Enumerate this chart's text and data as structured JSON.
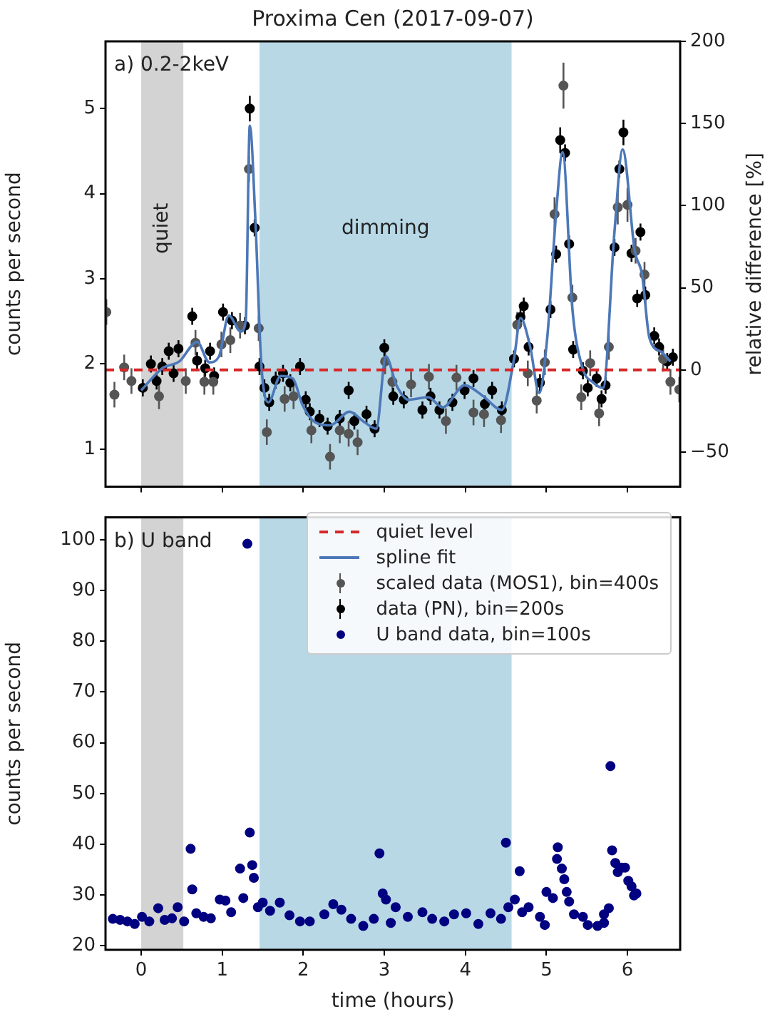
{
  "chart_data": [
    {
      "type": "scatter",
      "title": "Proxima Cen (2017-09-07)",
      "ylabel": "counts per second",
      "y2label": "relative difference [%]",
      "annotations": [
        "a) 0.2-2keV"
      ],
      "xlim": [
        -0.44,
        6.65
      ],
      "xticks": [
        0,
        1,
        2,
        3,
        4,
        5,
        6
      ],
      "ylim": [
        0.56,
        5.79
      ],
      "yticks": [
        1,
        2,
        3,
        4,
        5
      ],
      "y2lim": [
        -71,
        200
      ],
      "y2ticks": [
        {
          "value": -50,
          "label": "−50"
        },
        0,
        50,
        100,
        150,
        200
      ],
      "tick_labels": "y",
      "legend": "bottom right",
      "ref_lines": [
        {
          "axis": "y",
          "value": 1.93,
          "label": "quiet level",
          "color": "#d62728",
          "line_style": "dashed"
        }
      ],
      "bands": [
        {
          "axis": "x",
          "from": 0,
          "to": 0.52,
          "label": "quiet",
          "color": "#d3d3d3"
        },
        {
          "axis": "x",
          "from": 1.46,
          "to": 4.57,
          "label": "dimming",
          "color": "#b8d8e6"
        }
      ],
      "series": [
        {
          "name": "spline fit",
          "type": "line",
          "color": "#4c78b8",
          "x": [
            0,
            0.26,
            0.47,
            0.69,
            0.84,
            0.96,
            1.08,
            1.23,
            1.29,
            1.34,
            1.41,
            1.48,
            1.57,
            1.72,
            1.87,
            1.99,
            2.14,
            2.33,
            2.57,
            2.75,
            2.9,
            3.02,
            3.15,
            3.3,
            3.54,
            3.72,
            3.99,
            4.21,
            4.45,
            4.6,
            4.68,
            4.8,
            4.91,
            5.01,
            5.12,
            5.2,
            5.32,
            5.44,
            5.58,
            5.7,
            5.84,
            5.94,
            6.09,
            6.18,
            6.27,
            6.42,
            6.53
          ],
          "values": [
            1.69,
            1.95,
            2.03,
            2.26,
            2.02,
            2.09,
            2.57,
            2.38,
            2.51,
            4.8,
            3.67,
            2.03,
            1.55,
            1.86,
            1.83,
            1.52,
            1.32,
            1.28,
            1.44,
            1.32,
            1.24,
            2.09,
            1.75,
            1.58,
            1.61,
            1.49,
            1.75,
            1.63,
            1.46,
            2.06,
            2.54,
            2.2,
            1.66,
            2.31,
            3.78,
            4.49,
            2.65,
            1.97,
            1.78,
            1.72,
            3.56,
            4.52,
            3.33,
            3.05,
            2.31,
            2.14,
            2.03
          ]
        },
        {
          "name": "scaled data (MOS1), bin=400s",
          "type": "scatter",
          "marker": "circle",
          "color": "#555555",
          "x": [
            -0.43,
            -0.33,
            -0.21,
            -0.12,
            0.22,
            0.55,
            0.67,
            0.78,
            0.89,
            0.99,
            1.1,
            1.22,
            1.33,
            1.45,
            1.55,
            1.77,
            1.88,
            2.1,
            2.33,
            2.45,
            2.56,
            2.67,
            3.01,
            3.1,
            3.33,
            3.55,
            3.76,
            3.89,
            4.1,
            4.23,
            4.44,
            4.64,
            4.77,
            4.88,
            4.98,
            5.1,
            5.21,
            5.32,
            5.43,
            5.54,
            5.65,
            5.77,
            5.88,
            6.0,
            6.1,
            6.21,
            6.44,
            6.53,
            6.64
          ],
          "values": [
            2.61,
            1.64,
            1.96,
            1.8,
            1.62,
            1.8,
            2.25,
            1.79,
            1.79,
            2.23,
            2.28,
            2.45,
            4.29,
            2.42,
            1.2,
            1.59,
            1.62,
            1.22,
            0.91,
            1.22,
            1.18,
            1.08,
            2.03,
            1.79,
            1.76,
            1.85,
            1.33,
            1.84,
            1.43,
            1.41,
            1.34,
            2.46,
            1.89,
            1.57,
            2.02,
            3.76,
            5.27,
            2.78,
            1.61,
            2.01,
            1.42,
            2.2,
            3.84,
            3.87,
            3.33,
            3.05,
            2.06,
            1.79,
            1.7
          ],
          "errors": [
            0.15,
            0.15,
            0.15,
            0.15,
            0.15,
            0.15,
            0.15,
            0.15,
            0.15,
            0.15,
            0.15,
            0.15,
            0.15,
            0.15,
            0.15,
            0.15,
            0.15,
            0.15,
            0.15,
            0.15,
            0.15,
            0.15,
            0.15,
            0.15,
            0.15,
            0.15,
            0.15,
            0.15,
            0.15,
            0.15,
            0.15,
            0.15,
            0.15,
            0.15,
            0.15,
            0.2,
            0.27,
            0.15,
            0.15,
            0.15,
            0.15,
            0.15,
            0.2,
            0.2,
            0.15,
            0.15,
            0.15,
            0.15,
            0.15
          ]
        },
        {
          "name": "data (PN), bin=200s",
          "type": "scatter",
          "marker": "circle",
          "color": "#000000",
          "x": [
            0.02,
            0.12,
            0.19,
            0.26,
            0.34,
            0.4,
            0.46,
            0.63,
            0.69,
            0.79,
            0.85,
            0.9,
            1.01,
            1.12,
            1.28,
            1.34,
            1.4,
            1.46,
            1.52,
            1.58,
            1.66,
            1.75,
            1.84,
            1.96,
            2.03,
            2.08,
            2.2,
            2.3,
            2.45,
            2.56,
            2.63,
            2.78,
            2.88,
            3.0,
            3.11,
            3.24,
            3.47,
            3.57,
            3.68,
            3.84,
            3.99,
            4.1,
            4.24,
            4.33,
            4.45,
            4.6,
            4.68,
            4.72,
            4.78,
            4.92,
            5.05,
            5.12,
            5.17,
            5.23,
            5.28,
            5.33,
            5.45,
            5.51,
            5.62,
            5.68,
            5.73,
            5.84,
            5.9,
            5.95,
            6.05,
            6.12,
            6.16,
            6.22,
            6.33,
            6.39,
            6.49,
            6.56
          ],
          "values": [
            1.72,
            2.0,
            1.8,
            1.97,
            2.15,
            1.89,
            2.18,
            2.56,
            2.04,
            1.95,
            2.15,
            1.86,
            2.61,
            2.51,
            2.45,
            5.0,
            3.6,
            1.97,
            1.72,
            1.55,
            1.81,
            1.89,
            1.78,
            1.97,
            1.58,
            1.44,
            1.36,
            1.27,
            1.36,
            1.69,
            1.33,
            1.41,
            1.24,
            2.19,
            1.62,
            1.58,
            1.46,
            1.62,
            1.46,
            1.55,
            1.69,
            1.83,
            1.53,
            1.69,
            1.46,
            2.06,
            2.55,
            2.68,
            2.2,
            1.78,
            2.64,
            3.29,
            4.63,
            4.48,
            3.41,
            2.17,
            1.92,
            1.72,
            1.83,
            1.59,
            1.75,
            3.37,
            4.29,
            4.72,
            3.3,
            2.77,
            3.55,
            2.81,
            2.33,
            2.2,
            2.03,
            2.08
          ],
          "errors": [
            0.1,
            0.1,
            0.1,
            0.1,
            0.1,
            0.1,
            0.1,
            0.1,
            0.1,
            0.1,
            0.1,
            0.1,
            0.1,
            0.1,
            0.1,
            0.15,
            0.1,
            0.1,
            0.1,
            0.1,
            0.1,
            0.1,
            0.1,
            0.1,
            0.1,
            0.1,
            0.1,
            0.1,
            0.1,
            0.1,
            0.1,
            0.1,
            0.1,
            0.1,
            0.1,
            0.1,
            0.1,
            0.1,
            0.1,
            0.1,
            0.1,
            0.1,
            0.1,
            0.1,
            0.1,
            0.1,
            0.1,
            0.1,
            0.1,
            0.1,
            0.1,
            0.1,
            0.15,
            0.1,
            0.1,
            0.1,
            0.1,
            0.1,
            0.1,
            0.1,
            0.1,
            0.1,
            0.1,
            0.15,
            0.1,
            0.1,
            0.1,
            0.1,
            0.1,
            0.1,
            0.1,
            0.1
          ]
        }
      ]
    },
    {
      "type": "scatter",
      "xlabel": "time (hours)",
      "ylabel": "counts per second",
      "annotations": [
        "b) U band"
      ],
      "xlim": [
        -0.44,
        6.65
      ],
      "xticks": [
        0,
        1,
        2,
        3,
        4,
        5,
        6
      ],
      "ylim": [
        19.2,
        104.4
      ],
      "yticks": [
        20,
        30,
        40,
        50,
        60,
        70,
        80,
        90,
        100
      ],
      "legend": "top right",
      "bands": [
        {
          "axis": "x",
          "from": 0,
          "to": 0.52,
          "color": "#d3d3d3"
        },
        {
          "axis": "x",
          "from": 1.46,
          "to": 4.57,
          "color": "#b8d8e6"
        }
      ],
      "series": [
        {
          "name": "U band data, bin=100s",
          "type": "scatter",
          "marker": "circle",
          "color": "#000080",
          "x": [
            -0.35,
            -0.26,
            -0.17,
            -0.08,
            0.01,
            0.1,
            0.21,
            0.29,
            0.38,
            0.45,
            0.53,
            0.61,
            0.63,
            0.68,
            0.77,
            0.86,
            0.97,
            1.04,
            1.11,
            1.22,
            1.26,
            1.31,
            1.34,
            1.37,
            1.39,
            1.44,
            1.5,
            1.59,
            1.71,
            1.83,
            1.96,
            2.08,
            2.26,
            2.37,
            2.47,
            2.59,
            2.74,
            2.87,
            2.94,
            2.98,
            3.02,
            3.08,
            3.14,
            3.29,
            3.47,
            3.59,
            3.74,
            3.86,
            4.01,
            4.16,
            4.31,
            4.44,
            4.5,
            4.53,
            4.61,
            4.67,
            4.7,
            4.78,
            4.92,
            4.98,
            5.0,
            5.08,
            5.13,
            5.14,
            5.19,
            5.22,
            5.25,
            5.28,
            5.34,
            5.45,
            5.51,
            5.63,
            5.71,
            5.71,
            5.77,
            5.79,
            5.81,
            5.85,
            5.88,
            5.93,
            5.97,
            6.01,
            6.05,
            6.08,
            6.11
          ],
          "values": [
            25.3,
            25.1,
            24.8,
            24.3,
            25.7,
            24.8,
            27.4,
            25.1,
            25.4,
            27.6,
            24.8,
            39.1,
            31.1,
            26.4,
            25.7,
            25.4,
            29.1,
            28.9,
            26.6,
            35.2,
            29.4,
            99.2,
            42.3,
            35.9,
            33.4,
            27.6,
            28.5,
            26.9,
            28.5,
            26.0,
            24.8,
            24.8,
            26.2,
            28.2,
            27.1,
            25.3,
            23.9,
            25.3,
            38.2,
            30.3,
            29.1,
            24.5,
            27.6,
            25.7,
            26.6,
            25.3,
            24.8,
            26.2,
            26.4,
            24.3,
            26.4,
            25.3,
            40.3,
            27.6,
            29.1,
            34.7,
            26.6,
            27.6,
            25.7,
            24.1,
            30.6,
            29.4,
            37.1,
            39.4,
            35.2,
            33.1,
            30.6,
            28.7,
            26.2,
            25.7,
            24.1,
            23.9,
            26.2,
            24.5,
            27.4,
            55.4,
            38.8,
            36.3,
            34.5,
            35.4,
            35.4,
            32.8,
            31.7,
            29.9,
            30.3
          ]
        }
      ]
    }
  ]
}
